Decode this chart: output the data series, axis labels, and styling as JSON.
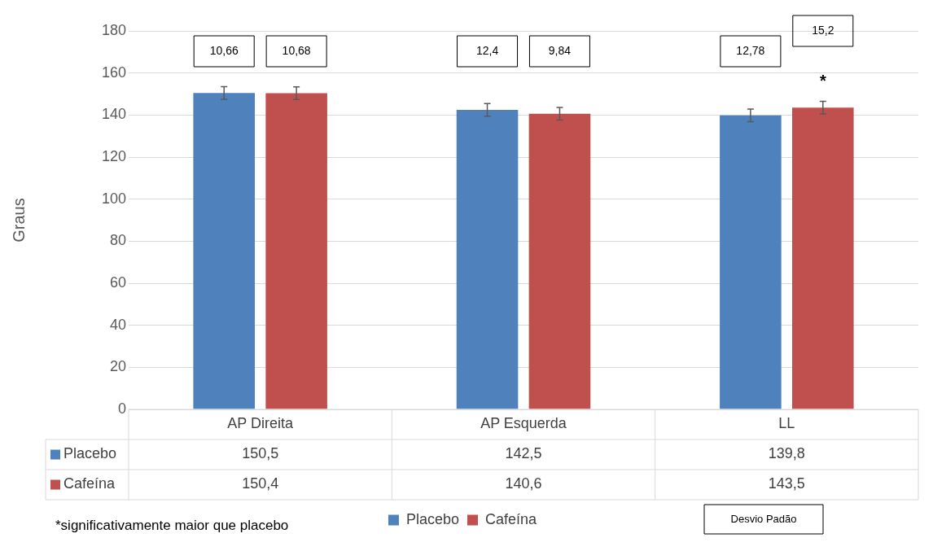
{
  "chart_data": {
    "type": "bar",
    "ylabel": "Graus",
    "categories": [
      "AP Direita",
      "AP Esquerda",
      "LL"
    ],
    "series": [
      {
        "name": "Placebo",
        "color": "#4f81bd",
        "values": [
          150.5,
          142.5,
          139.8
        ],
        "errors": [
          3,
          3,
          3
        ],
        "value_labels": [
          "150,5",
          "142,5",
          "139,8"
        ]
      },
      {
        "name": "Cafeína",
        "color": "#c0504d",
        "values": [
          150.4,
          140.6,
          143.5
        ],
        "errors": [
          3,
          3,
          3
        ],
        "value_labels": [
          "150,4",
          "140,6",
          "143,5"
        ]
      }
    ],
    "ylim": [
      0,
      180
    ],
    "yticks": [
      0,
      20,
      40,
      60,
      80,
      100,
      120,
      140,
      160,
      180
    ],
    "grid": "y",
    "legend": "bottom",
    "annotations": [
      "10,66",
      "10,68",
      "12,4",
      "9,84",
      "12,78",
      "15,2",
      "*",
      "*significativamente maior que placebo",
      "Desvio Padão"
    ]
  }
}
